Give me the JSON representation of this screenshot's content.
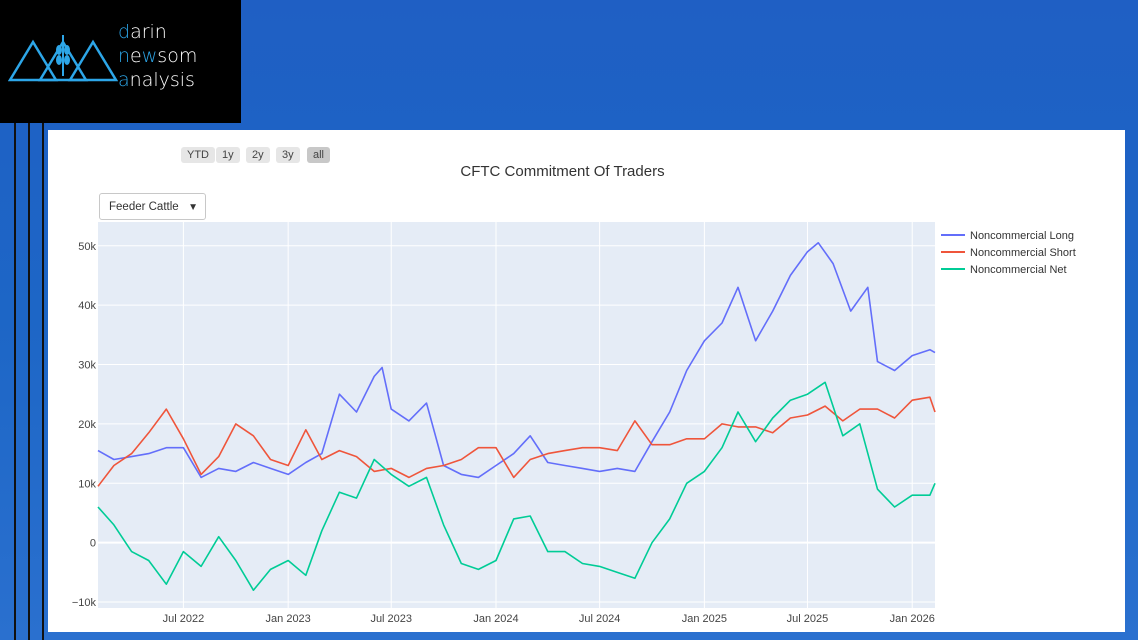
{
  "brand": {
    "line1_accent": "d",
    "line1_rest": "arin",
    "line2_accent": "n",
    "line2_mid": "e",
    "line2_accent2": "w",
    "line2_rest": "som",
    "line3_accent": "a",
    "line3_rest": "nalysis"
  },
  "range_selector": [
    "YTD",
    "1y",
    "2y",
    "3y",
    "all"
  ],
  "range_selector_active": "all",
  "dropdown": {
    "selected": "Feeder Cattle",
    "arrow": "▼"
  },
  "colors": {
    "long": "#636efa",
    "short": "#ef553b",
    "net": "#00cc96",
    "plot_bg": "#e5ecf6"
  },
  "chart_data": {
    "type": "line",
    "title": "CFTC Commitment Of Traders",
    "x_range": [
      "2022-02-01",
      "2026-02-10"
    ],
    "ylim": [
      -11000,
      54000
    ],
    "y_ticks": [
      -10000,
      0,
      10000,
      20000,
      30000,
      40000,
      50000
    ],
    "y_tick_labels": [
      "−10k",
      "0",
      "10k",
      "20k",
      "30k",
      "40k",
      "50k"
    ],
    "x_ticks": [
      "2022-07-01",
      "2023-01-01",
      "2023-07-01",
      "2024-01-01",
      "2024-07-01",
      "2025-01-01",
      "2025-07-01",
      "2026-01-01"
    ],
    "x_tick_labels": [
      "Jul 2022",
      "Jan 2023",
      "Jul 2023",
      "Jan 2024",
      "Jul 2024",
      "Jan 2025",
      "Jul 2025",
      "Jan 2026"
    ],
    "legend_position": "top-right",
    "grid": true,
    "series": [
      {
        "name": "Noncommercial Long",
        "points": [
          [
            "2022-02-01",
            15500
          ],
          [
            "2022-03-01",
            14000
          ],
          [
            "2022-04-01",
            14500
          ],
          [
            "2022-05-01",
            15000
          ],
          [
            "2022-06-01",
            16000
          ],
          [
            "2022-07-01",
            16000
          ],
          [
            "2022-08-01",
            11000
          ],
          [
            "2022-09-01",
            12500
          ],
          [
            "2022-10-01",
            12000
          ],
          [
            "2022-11-01",
            13500
          ],
          [
            "2022-12-01",
            12500
          ],
          [
            "2023-01-01",
            11500
          ],
          [
            "2023-02-01",
            13500
          ],
          [
            "2023-03-01",
            15000
          ],
          [
            "2023-04-01",
            25000
          ],
          [
            "2023-05-01",
            22000
          ],
          [
            "2023-06-01",
            28000
          ],
          [
            "2023-06-15",
            29500
          ],
          [
            "2023-07-01",
            22500
          ],
          [
            "2023-08-01",
            20500
          ],
          [
            "2023-09-01",
            23500
          ],
          [
            "2023-10-01",
            13000
          ],
          [
            "2023-11-01",
            11500
          ],
          [
            "2023-12-01",
            11000
          ],
          [
            "2024-01-01",
            13000
          ],
          [
            "2024-02-01",
            15000
          ],
          [
            "2024-03-01",
            18000
          ],
          [
            "2024-04-01",
            13500
          ],
          [
            "2024-05-01",
            13000
          ],
          [
            "2024-06-01",
            12500
          ],
          [
            "2024-07-01",
            12000
          ],
          [
            "2024-08-01",
            12500
          ],
          [
            "2024-09-01",
            12000
          ],
          [
            "2024-10-01",
            17000
          ],
          [
            "2024-11-01",
            22000
          ],
          [
            "2024-12-01",
            29000
          ],
          [
            "2025-01-01",
            34000
          ],
          [
            "2025-02-01",
            37000
          ],
          [
            "2025-03-01",
            43000
          ],
          [
            "2025-04-01",
            34000
          ],
          [
            "2025-05-01",
            39000
          ],
          [
            "2025-06-01",
            45000
          ],
          [
            "2025-07-01",
            49000
          ],
          [
            "2025-07-20",
            50500
          ],
          [
            "2025-08-15",
            47000
          ],
          [
            "2025-09-15",
            39000
          ],
          [
            "2025-10-15",
            43000
          ],
          [
            "2025-11-01",
            30500
          ],
          [
            "2025-12-01",
            29000
          ],
          [
            "2026-01-01",
            31500
          ],
          [
            "2026-02-01",
            32500
          ],
          [
            "2026-02-10",
            32000
          ]
        ]
      },
      {
        "name": "Noncommercial Short",
        "points": [
          [
            "2022-02-01",
            9500
          ],
          [
            "2022-03-01",
            13000
          ],
          [
            "2022-04-01",
            15000
          ],
          [
            "2022-05-01",
            18500
          ],
          [
            "2022-06-01",
            22500
          ],
          [
            "2022-07-01",
            17500
          ],
          [
            "2022-08-01",
            11500
          ],
          [
            "2022-09-01",
            14500
          ],
          [
            "2022-10-01",
            20000
          ],
          [
            "2022-11-01",
            18000
          ],
          [
            "2022-12-01",
            14000
          ],
          [
            "2023-01-01",
            13000
          ],
          [
            "2023-02-01",
            19000
          ],
          [
            "2023-03-01",
            14000
          ],
          [
            "2023-04-01",
            15500
          ],
          [
            "2023-05-01",
            14500
          ],
          [
            "2023-06-01",
            12000
          ],
          [
            "2023-07-01",
            12500
          ],
          [
            "2023-08-01",
            11000
          ],
          [
            "2023-09-01",
            12500
          ],
          [
            "2023-10-01",
            13000
          ],
          [
            "2023-11-01",
            14000
          ],
          [
            "2023-12-01",
            16000
          ],
          [
            "2024-01-01",
            16000
          ],
          [
            "2024-02-01",
            11000
          ],
          [
            "2024-03-01",
            14000
          ],
          [
            "2024-04-01",
            15000
          ],
          [
            "2024-05-01",
            15500
          ],
          [
            "2024-06-01",
            16000
          ],
          [
            "2024-07-01",
            16000
          ],
          [
            "2024-08-01",
            15500
          ],
          [
            "2024-09-01",
            20500
          ],
          [
            "2024-10-01",
            16500
          ],
          [
            "2024-11-01",
            16500
          ],
          [
            "2024-12-01",
            17500
          ],
          [
            "2025-01-01",
            17500
          ],
          [
            "2025-02-01",
            20000
          ],
          [
            "2025-03-01",
            19500
          ],
          [
            "2025-04-01",
            19500
          ],
          [
            "2025-05-01",
            18500
          ],
          [
            "2025-06-01",
            21000
          ],
          [
            "2025-07-01",
            21500
          ],
          [
            "2025-08-01",
            23000
          ],
          [
            "2025-09-01",
            20500
          ],
          [
            "2025-10-01",
            22500
          ],
          [
            "2025-11-01",
            22500
          ],
          [
            "2025-12-01",
            21000
          ],
          [
            "2026-01-01",
            24000
          ],
          [
            "2026-02-01",
            24500
          ],
          [
            "2026-02-10",
            22000
          ]
        ]
      },
      {
        "name": "Noncommercial Net",
        "points": [
          [
            "2022-02-01",
            6000
          ],
          [
            "2022-03-01",
            3000
          ],
          [
            "2022-04-01",
            -1500
          ],
          [
            "2022-05-01",
            -3000
          ],
          [
            "2022-06-01",
            -7000
          ],
          [
            "2022-07-01",
            -1500
          ],
          [
            "2022-08-01",
            -4000
          ],
          [
            "2022-09-01",
            1000
          ],
          [
            "2022-10-01",
            -3000
          ],
          [
            "2022-11-01",
            -8000
          ],
          [
            "2022-12-01",
            -4500
          ],
          [
            "2023-01-01",
            -3000
          ],
          [
            "2023-02-01",
            -5500
          ],
          [
            "2023-03-01",
            2000
          ],
          [
            "2023-04-01",
            8500
          ],
          [
            "2023-05-01",
            7500
          ],
          [
            "2023-06-01",
            14000
          ],
          [
            "2023-07-01",
            11500
          ],
          [
            "2023-08-01",
            9500
          ],
          [
            "2023-09-01",
            11000
          ],
          [
            "2023-10-01",
            3000
          ],
          [
            "2023-11-01",
            -3500
          ],
          [
            "2023-12-01",
            -4500
          ],
          [
            "2024-01-01",
            -3000
          ],
          [
            "2024-02-01",
            4000
          ],
          [
            "2024-03-01",
            4500
          ],
          [
            "2024-04-01",
            -1500
          ],
          [
            "2024-05-01",
            -1500
          ],
          [
            "2024-06-01",
            -3500
          ],
          [
            "2024-07-01",
            -4000
          ],
          [
            "2024-08-01",
            -5000
          ],
          [
            "2024-09-01",
            -6000
          ],
          [
            "2024-10-01",
            0
          ],
          [
            "2024-11-01",
            4000
          ],
          [
            "2024-12-01",
            10000
          ],
          [
            "2025-01-01",
            12000
          ],
          [
            "2025-02-01",
            16000
          ],
          [
            "2025-03-01",
            22000
          ],
          [
            "2025-04-01",
            17000
          ],
          [
            "2025-05-01",
            21000
          ],
          [
            "2025-06-01",
            24000
          ],
          [
            "2025-07-01",
            25000
          ],
          [
            "2025-08-01",
            27000
          ],
          [
            "2025-09-01",
            18000
          ],
          [
            "2025-10-01",
            20000
          ],
          [
            "2025-11-01",
            9000
          ],
          [
            "2025-12-01",
            6000
          ],
          [
            "2026-01-01",
            8000
          ],
          [
            "2026-02-01",
            8000
          ],
          [
            "2026-02-10",
            10000
          ]
        ]
      }
    ]
  }
}
